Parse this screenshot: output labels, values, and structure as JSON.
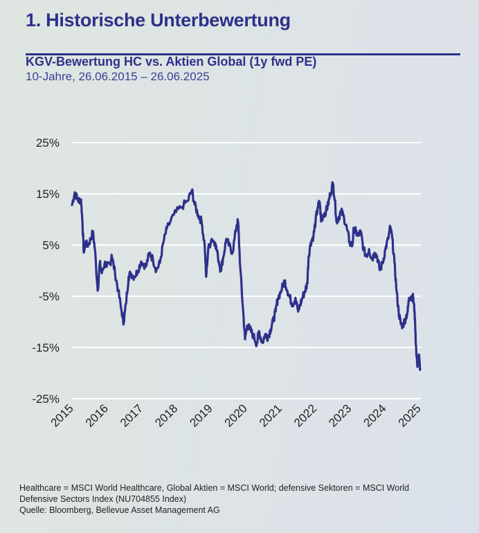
{
  "header": {
    "title": "1. Historische Unterbewertung",
    "subtitle": "KGV-Bewertung HC vs. Aktien Global (1y fwd PE)",
    "period": "10-Jahre, 26.06.2015 – 26.06.2025"
  },
  "colors": {
    "line": "#2e3189",
    "title": "#2e3189",
    "grid": "#ffffff"
  },
  "chart_data": {
    "type": "line",
    "title": "KGV-Bewertung HC vs. Aktien Global (1y fwd PE)",
    "xlabel": "",
    "ylabel": "",
    "xlim": [
      2015,
      2025
    ],
    "ylim": [
      -25,
      25
    ],
    "grid": true,
    "x_ticks": [
      "2015",
      "2016",
      "2017",
      "2018",
      "2019",
      "2020",
      "2021",
      "2022",
      "2023",
      "2024",
      "2025"
    ],
    "y_ticks": [
      "25%",
      "15%",
      "5%",
      "-5%",
      "-15%",
      "-25%"
    ],
    "y_tick_values": [
      25,
      15,
      5,
      -5,
      -15,
      -25
    ],
    "series": [
      {
        "points": [
          [
            2015.0,
            12.8
          ],
          [
            2015.08,
            15.3
          ],
          [
            2015.18,
            13.6
          ],
          [
            2015.26,
            13.9
          ],
          [
            2015.3,
            9.6
          ],
          [
            2015.34,
            3.5
          ],
          [
            2015.38,
            5.5
          ],
          [
            2015.44,
            4.9
          ],
          [
            2015.54,
            6.1
          ],
          [
            2015.6,
            7.6
          ],
          [
            2015.66,
            4.2
          ],
          [
            2015.74,
            -3.9
          ],
          [
            2015.8,
            1.5
          ],
          [
            2015.86,
            -0.5
          ],
          [
            2015.94,
            1.5
          ],
          [
            2016.0,
            0.8
          ],
          [
            2016.1,
            1.2
          ],
          [
            2016.14,
            3.1
          ],
          [
            2016.24,
            -0.5
          ],
          [
            2016.33,
            -3.9
          ],
          [
            2016.43,
            -8.0
          ],
          [
            2016.49,
            -10.1
          ],
          [
            2016.55,
            -6.6
          ],
          [
            2016.63,
            -1.2
          ],
          [
            2016.69,
            -0.5
          ],
          [
            2016.79,
            -1.2
          ],
          [
            2016.89,
            -0.1
          ],
          [
            2016.99,
            1.8
          ],
          [
            2017.13,
            0.8
          ],
          [
            2017.23,
            3.5
          ],
          [
            2017.33,
            2.2
          ],
          [
            2017.43,
            0.1
          ],
          [
            2017.53,
            1.5
          ],
          [
            2017.63,
            5.5
          ],
          [
            2017.73,
            8.2
          ],
          [
            2017.93,
            10.9
          ],
          [
            2018.13,
            12.3
          ],
          [
            2018.33,
            13.6
          ],
          [
            2018.45,
            15.7
          ],
          [
            2018.53,
            12.9
          ],
          [
            2018.63,
            10.9
          ],
          [
            2018.73,
            9.6
          ],
          [
            2018.82,
            4.9
          ],
          [
            2018.86,
            -1.2
          ],
          [
            2018.92,
            4.2
          ],
          [
            2019.02,
            6.2
          ],
          [
            2019.12,
            5.5
          ],
          [
            2019.2,
            2.8
          ],
          [
            2019.28,
            0.1
          ],
          [
            2019.36,
            2.8
          ],
          [
            2019.44,
            6.2
          ],
          [
            2019.52,
            4.9
          ],
          [
            2019.62,
            3.5
          ],
          [
            2019.74,
            8.9
          ],
          [
            2019.78,
            9.6
          ],
          [
            2019.84,
            0.8
          ],
          [
            2019.92,
            -7.3
          ],
          [
            2019.98,
            -13.4
          ],
          [
            2020.04,
            -10.7
          ],
          [
            2020.12,
            -11.4
          ],
          [
            2020.22,
            -12.7
          ],
          [
            2020.32,
            -14.3
          ],
          [
            2020.38,
            -11.8
          ],
          [
            2020.48,
            -14.1
          ],
          [
            2020.56,
            -12.4
          ],
          [
            2020.64,
            -13.0
          ],
          [
            2020.72,
            -11.4
          ],
          [
            2020.78,
            -10.0
          ],
          [
            2020.86,
            -8.0
          ],
          [
            2020.92,
            -5.5
          ],
          [
            2021.02,
            -3.9
          ],
          [
            2021.12,
            -1.9
          ],
          [
            2021.2,
            -3.9
          ],
          [
            2021.27,
            -5.3
          ],
          [
            2021.35,
            -6.6
          ],
          [
            2021.43,
            -5.3
          ],
          [
            2021.51,
            -8.0
          ],
          [
            2021.57,
            -6.6
          ],
          [
            2021.63,
            -5.3
          ],
          [
            2021.71,
            -3.9
          ],
          [
            2021.77,
            -2.6
          ],
          [
            2021.81,
            2.8
          ],
          [
            2021.87,
            5.5
          ],
          [
            2021.95,
            6.8
          ],
          [
            2022.01,
            9.6
          ],
          [
            2022.07,
            12.3
          ],
          [
            2022.13,
            13.4
          ],
          [
            2022.17,
            9.6
          ],
          [
            2022.23,
            10.9
          ],
          [
            2022.31,
            11.6
          ],
          [
            2022.37,
            12.9
          ],
          [
            2022.43,
            14.9
          ],
          [
            2022.51,
            17.0
          ],
          [
            2022.57,
            13.6
          ],
          [
            2022.61,
            9.6
          ],
          [
            2022.67,
            10.3
          ],
          [
            2022.75,
            11.6
          ],
          [
            2022.83,
            10.3
          ],
          [
            2022.91,
            8.2
          ],
          [
            2022.99,
            5.5
          ],
          [
            2023.07,
            4.9
          ],
          [
            2023.11,
            8.2
          ],
          [
            2023.17,
            7.6
          ],
          [
            2023.23,
            6.8
          ],
          [
            2023.31,
            7.6
          ],
          [
            2023.39,
            4.2
          ],
          [
            2023.47,
            2.8
          ],
          [
            2023.55,
            4.2
          ],
          [
            2023.63,
            2.2
          ],
          [
            2023.71,
            3.5
          ],
          [
            2023.78,
            2.8
          ],
          [
            2023.86,
            0.1
          ],
          [
            2023.94,
            1.5
          ],
          [
            2024.02,
            4.2
          ],
          [
            2024.1,
            6.2
          ],
          [
            2024.16,
            8.5
          ],
          [
            2024.22,
            6.2
          ],
          [
            2024.28,
            1.5
          ],
          [
            2024.34,
            -3.9
          ],
          [
            2024.4,
            -8.0
          ],
          [
            2024.46,
            -10.4
          ],
          [
            2024.52,
            -10.7
          ],
          [
            2024.6,
            -9.3
          ],
          [
            2024.66,
            -8.0
          ],
          [
            2024.7,
            -5.3
          ],
          [
            2024.76,
            -5.0
          ],
          [
            2024.82,
            -5.3
          ],
          [
            2024.86,
            -8.0
          ],
          [
            2024.9,
            -14.7
          ],
          [
            2024.94,
            -18.8
          ],
          [
            2024.98,
            -16.4
          ],
          [
            2025.02,
            -19.2
          ]
        ]
      }
    ]
  },
  "footer": {
    "line1": "Healthcare = MSCI World Healthcare, Global Aktien = MSCI World; defensive Sektoren = MSCI World",
    "line2": "Defensive Sectors Index (NU704855 Index)",
    "line3": "Quelle: Bloomberg, Bellevue Asset Management AG"
  }
}
